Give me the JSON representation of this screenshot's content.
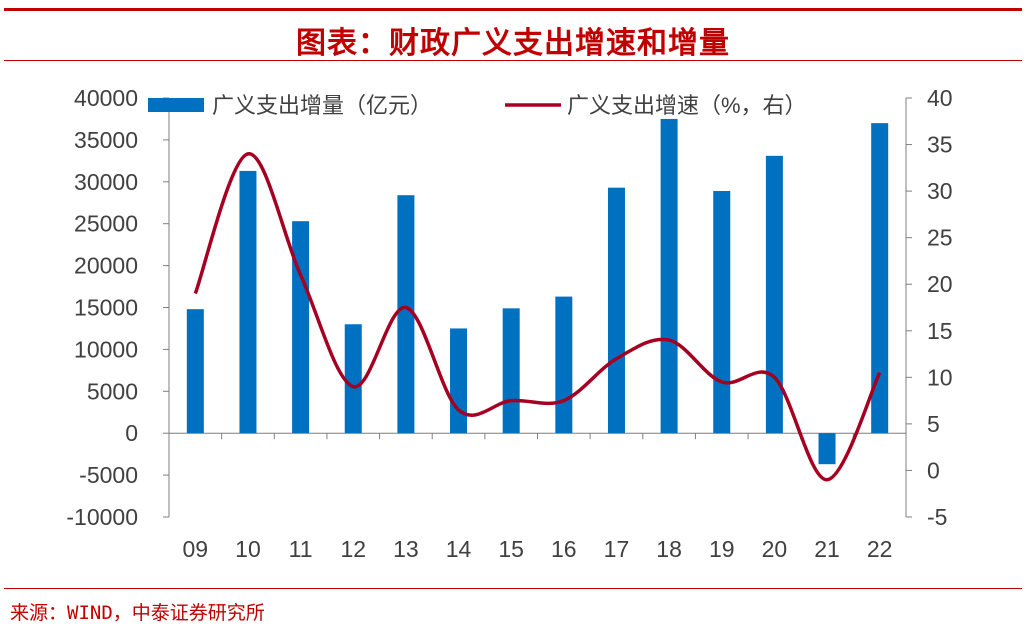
{
  "header": {
    "title": "图表：财政广义支出增速和增量"
  },
  "source": "来源：WIND，中泰证券研究所",
  "colors": {
    "bar": "#0070c0",
    "line": "#a50021",
    "accent": "#c00000",
    "axis": "#7f7f7f",
    "text": "#404040"
  },
  "chart_data": {
    "type": "bar",
    "categories": [
      "09",
      "10",
      "11",
      "12",
      "13",
      "14",
      "15",
      "16",
      "17",
      "18",
      "19",
      "20",
      "21",
      "22"
    ],
    "series": [
      {
        "name": "广义支出增量（亿元）",
        "type": "bar",
        "axis": "left",
        "values": [
          14800,
          31300,
          25300,
          13000,
          28400,
          12500,
          14900,
          16300,
          29300,
          37500,
          28900,
          33100,
          -3700,
          37000
        ]
      },
      {
        "name": "广义支出增速（%，右）",
        "type": "line",
        "axis": "right",
        "values": [
          19,
          34,
          21,
          9,
          17.5,
          6.5,
          7.5,
          7.5,
          12,
          14,
          9.5,
          10,
          -1,
          10.5
        ]
      }
    ],
    "y_left": {
      "min": -10000,
      "max": 40000,
      "ticks": [
        "-10000",
        "-5000",
        "0",
        "5000",
        "10000",
        "15000",
        "20000",
        "25000",
        "30000",
        "35000",
        "40000"
      ]
    },
    "y_right": {
      "min": -5,
      "max": 40,
      "ticks": [
        "-5",
        "0",
        "5",
        "10",
        "15",
        "20",
        "25",
        "30",
        "35",
        "40"
      ]
    },
    "legend_position": "top",
    "grid": false
  }
}
